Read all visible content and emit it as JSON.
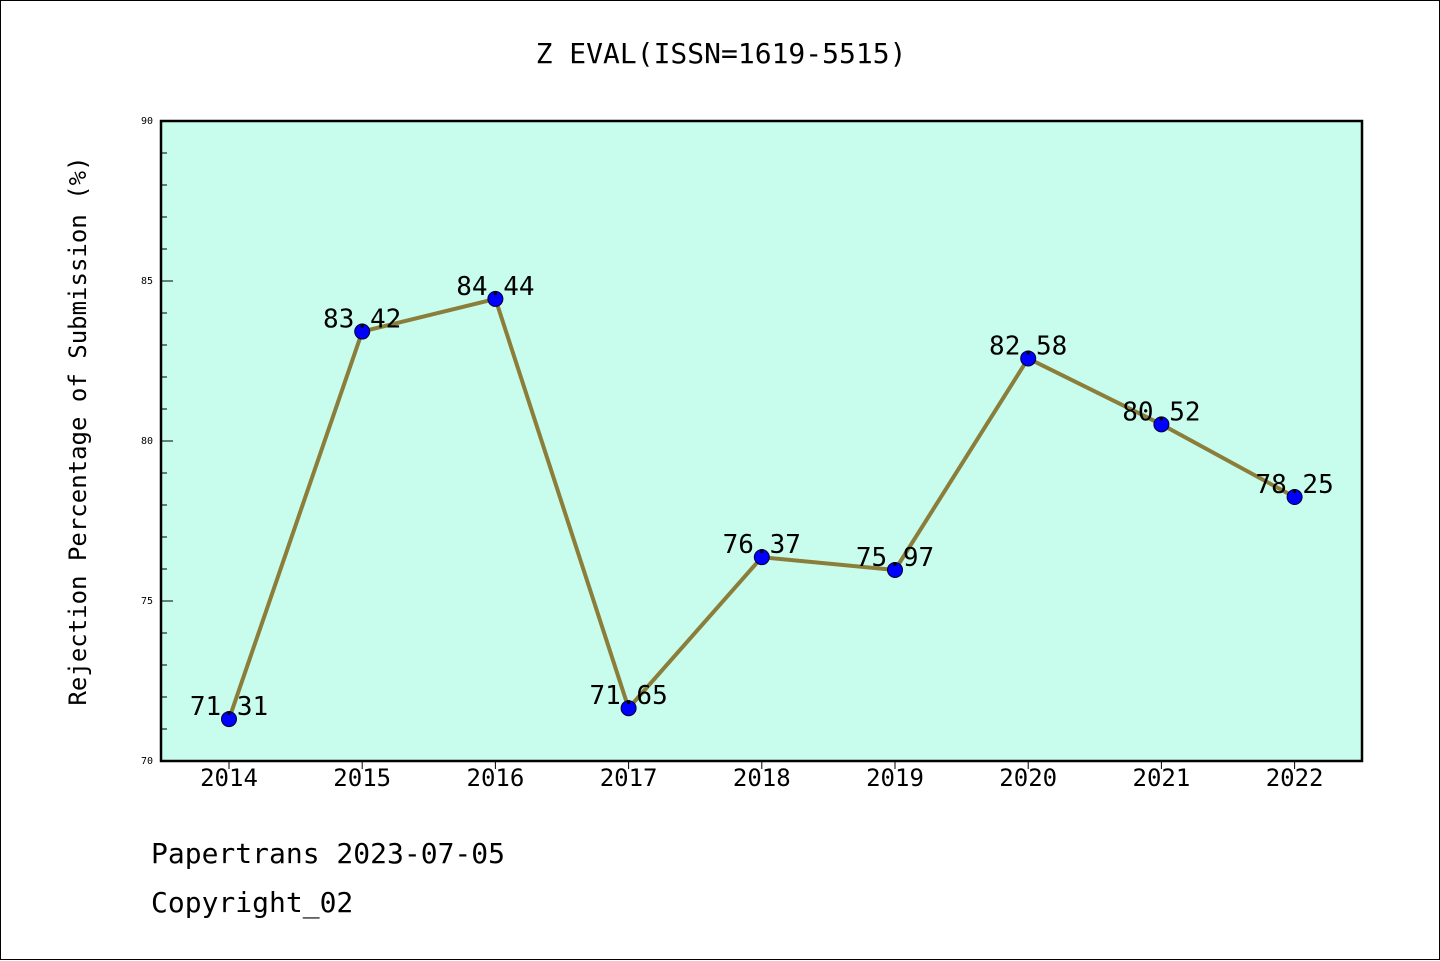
{
  "chart_data": {
    "type": "line",
    "title": "Z EVAL(ISSN=1619-5515)",
    "xlabel": "",
    "ylabel": "Rejection Percentage of Submission (%)",
    "x": [
      "2014",
      "2015",
      "2016",
      "2017",
      "2018",
      "2019",
      "2020",
      "2021",
      "2022"
    ],
    "series": [
      {
        "values": [
          71.31,
          83.42,
          84.44,
          71.65,
          76.37,
          75.97,
          82.58,
          80.52,
          78.25
        ]
      }
    ],
    "data_labels": [
      "71.31",
      "83.42",
      "84.44",
      "71.65",
      "76.37",
      "75.97",
      "82.58",
      "80.52",
      "78.25"
    ],
    "ylim": [
      70,
      90
    ],
    "yticks": [
      70,
      75,
      80,
      85,
      90
    ],
    "grid": false,
    "legend": "none",
    "colors": {
      "plot_background": "#c8fcec",
      "line": "#8b7d3a",
      "marker": "#0000ff",
      "text": "#000000"
    }
  },
  "footer": {
    "line1": "Papertrans 2023-07-05",
    "line2": "Copyright_02"
  }
}
